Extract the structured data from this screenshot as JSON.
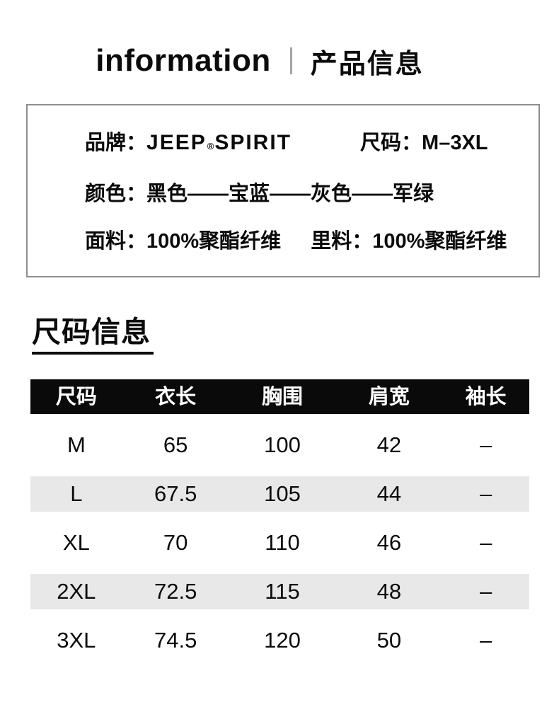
{
  "header": {
    "title_en": "information",
    "title_zh": "产品信息"
  },
  "info_box": {
    "brand_label": "品牌：",
    "brand_name_part1": "JEEP",
    "brand_reg": "®",
    "brand_name_part2": "SPIRIT",
    "size_label": "尺码：",
    "size_value": "M–3XL",
    "color_label": "颜色：",
    "color_value": "黑色——宝蓝——灰色——军绿",
    "fabric_label": "面料：",
    "fabric_value": "100%聚酯纤维",
    "lining_label": "里料：",
    "lining_value": "100%聚酯纤维"
  },
  "size_section": {
    "heading": "尺码信息",
    "table": {
      "columns": [
        "尺码",
        "衣长",
        "胸围",
        "肩宽",
        "袖长"
      ],
      "rows": [
        [
          "M",
          "65",
          "100",
          "42",
          "–"
        ],
        [
          "L",
          "67.5",
          "105",
          "44",
          "–"
        ],
        [
          "XL",
          "70",
          "110",
          "46",
          "–"
        ],
        [
          "2XL",
          "72.5",
          "115",
          "48",
          "–"
        ],
        [
          "3XL",
          "74.5",
          "120",
          "50",
          "–"
        ]
      ]
    }
  },
  "colors": {
    "text": "#0b0b0b",
    "table_header_bg": "#0a0a0a",
    "table_row_alt_bg": "#e8e8e8",
    "info_box_border": "#8e8e8e",
    "header_divider": "#a6a6a6"
  }
}
